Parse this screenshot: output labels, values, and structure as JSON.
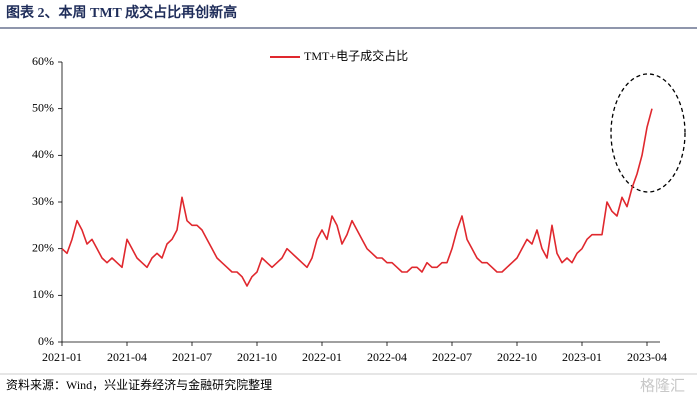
{
  "chart_data": {
    "type": "line",
    "title": "图表 2、本周 TMT 成交占比再创新高",
    "source": "资料来源：Wind，兴业证券经济与金融研究院整理",
    "watermark": "格隆汇",
    "categories": [
      "2021-01",
      null,
      null,
      null,
      null,
      null,
      null,
      null,
      null,
      null,
      null,
      null,
      null,
      "2021-04",
      null,
      null,
      null,
      null,
      null,
      null,
      null,
      null,
      null,
      null,
      null,
      null,
      "2021-07",
      null,
      null,
      null,
      null,
      null,
      null,
      null,
      null,
      null,
      null,
      null,
      null,
      "2021-10",
      null,
      null,
      null,
      null,
      null,
      null,
      null,
      null,
      null,
      null,
      null,
      null,
      "2022-01",
      null,
      null,
      null,
      null,
      null,
      null,
      null,
      null,
      null,
      null,
      null,
      null,
      "2022-04",
      null,
      null,
      null,
      null,
      null,
      null,
      null,
      null,
      null,
      null,
      null,
      null,
      "2022-07",
      null,
      null,
      null,
      null,
      null,
      null,
      null,
      null,
      null,
      null,
      null,
      null,
      "2022-10",
      null,
      null,
      null,
      null,
      null,
      null,
      null,
      null,
      null,
      null,
      null,
      null,
      "2023-01",
      null,
      null,
      null,
      null,
      null,
      null,
      null,
      null,
      null,
      null,
      null,
      null,
      "2023-04",
      null
    ],
    "series": [
      {
        "name": "TMT+电子成交占比",
        "color": "#e0282e",
        "values": [
          20,
          19,
          22,
          26,
          24,
          21,
          22,
          20,
          18,
          17,
          18,
          17,
          16,
          22,
          20,
          18,
          17,
          16,
          18,
          19,
          18,
          21,
          22,
          24,
          31,
          26,
          25,
          25,
          24,
          22,
          20,
          18,
          17,
          16,
          15,
          15,
          14,
          12,
          14,
          15,
          18,
          17,
          16,
          17,
          18,
          20,
          19,
          18,
          17,
          16,
          18,
          22,
          24,
          22,
          27,
          25,
          21,
          23,
          26,
          24,
          22,
          20,
          19,
          18,
          18,
          17,
          17,
          16,
          15,
          15,
          16,
          16,
          15,
          17,
          16,
          16,
          17,
          17,
          20,
          24,
          27,
          22,
          20,
          18,
          17,
          17,
          16,
          15,
          15,
          16,
          17,
          18,
          20,
          22,
          21,
          24,
          20,
          18,
          25,
          19,
          17,
          18,
          17,
          19,
          20,
          22,
          23,
          23,
          23,
          30,
          28,
          27,
          31,
          29,
          33,
          36,
          40,
          46,
          50
        ]
      }
    ],
    "ylim": [
      0,
      60
    ],
    "yticks": [
      {
        "value": 0,
        "label": "0%"
      },
      {
        "value": 10,
        "label": "10%"
      },
      {
        "value": 20,
        "label": "20%"
      },
      {
        "value": 30,
        "label": "30%"
      },
      {
        "value": 40,
        "label": "40%"
      },
      {
        "value": 50,
        "label": "50%"
      },
      {
        "value": 60,
        "label": "60%"
      }
    ],
    "legend": "top"
  }
}
